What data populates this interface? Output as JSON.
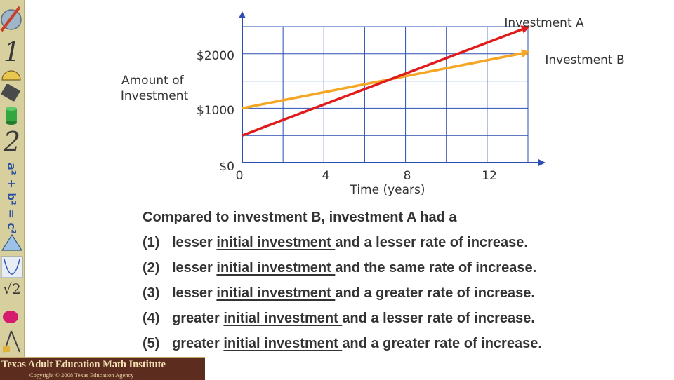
{
  "sidebar": {
    "glyphs": [
      "1",
      "2",
      "√2"
    ],
    "formula": "a² + b² = c²",
    "icons": [
      "pencil-icon",
      "protractor-icon",
      "calculator-icon",
      "cylinder-icon",
      "triangle-icon",
      "parabola-icon",
      "ellipse-icon",
      "tools-icon"
    ]
  },
  "footer": {
    "title": "Texas Adult Education Math Institute",
    "copyright": "Copyright © 2008 Texas Education Agency"
  },
  "chart_data": {
    "type": "line",
    "title": "",
    "xlabel": "Time (years)",
    "ylabel": "Amount of Investment",
    "x_ticks": [
      "0",
      "4",
      "8",
      "12"
    ],
    "y_ticks": [
      "$0",
      "$1000",
      "$2000"
    ],
    "xlim": [
      0,
      14
    ],
    "ylim": [
      0,
      2500
    ],
    "grid": true,
    "series": [
      {
        "name": "Investment A",
        "color": "#e01b1b",
        "x": [
          0,
          14
        ],
        "y": [
          500,
          2490
        ]
      },
      {
        "name": "Investment B",
        "color": "#f5a623",
        "x": [
          0,
          14
        ],
        "y": [
          1000,
          2030
        ]
      }
    ]
  },
  "question": {
    "stem": "Compared to investment B, investment A had a",
    "options": [
      {
        "num": "(1)",
        "pre": "lesser",
        "mid": "initial investment ",
        "post": "and a lesser rate of increase."
      },
      {
        "num": "(2)",
        "pre": "lesser",
        "mid": "initial investment ",
        "post": "and the same rate of increase."
      },
      {
        "num": "(3)",
        "pre": "lesser",
        "mid": "initial investment ",
        "post": "and a greater rate of increase."
      },
      {
        "num": "(4)",
        "pre": "greater",
        "mid": "initial investment ",
        "post": "and a lesser rate of increase."
      },
      {
        "num": "(5)",
        "pre": "greater",
        "mid": "initial investment ",
        "post": "and a greater rate of increase."
      }
    ]
  }
}
